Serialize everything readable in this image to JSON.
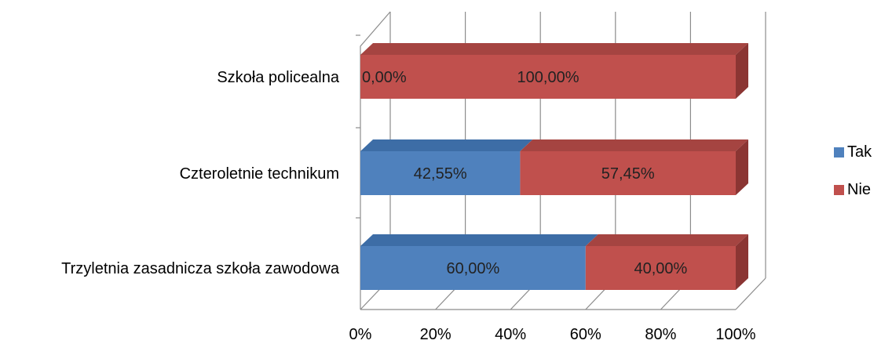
{
  "chart_data": {
    "type": "bar",
    "orientation": "horizontal",
    "stacked": "100%",
    "style": "3d",
    "categories": [
      "Szkoła policealna",
      "Czteroletnie technikum",
      "Trzyletnia zasadnicza szkoła zawodowa"
    ],
    "series": [
      {
        "name": "Tak",
        "color": "#4F81BD",
        "side_color": "#2E5585",
        "top_color": "#3D6DA6",
        "values": [
          0,
          42.55,
          60
        ],
        "labels": [
          "0,00%",
          "42,55%",
          "60,00%"
        ]
      },
      {
        "name": "Nie",
        "color": "#C0504D",
        "side_color": "#8B3533",
        "top_color": "#A54441",
        "values": [
          100,
          57.45,
          40
        ],
        "labels": [
          "100,00%",
          "57,45%",
          "40,00%"
        ]
      }
    ],
    "x_ticks": [
      "0%",
      "20%",
      "40%",
      "60%",
      "80%",
      "100%"
    ],
    "xlim": [
      0,
      100
    ],
    "grid": true,
    "legend_position": "right"
  }
}
